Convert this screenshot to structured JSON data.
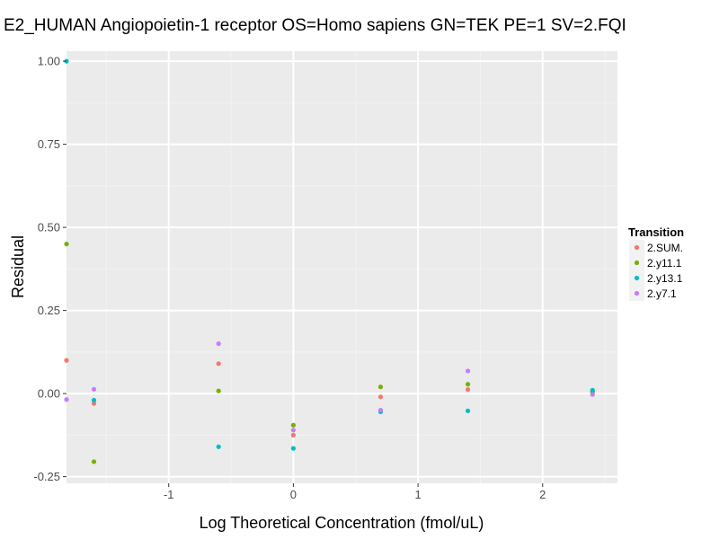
{
  "chart_data": {
    "type": "scatter",
    "title": "E2_HUMAN Angiopoietin-1 receptor OS=Homo sapiens GN=TEK PE=1 SV=2.FQI",
    "xlabel": "Log Theoretical Concentration (fmol/uL)",
    "ylabel": "Residual",
    "xlim": [
      -1.82,
      2.6
    ],
    "ylim": [
      -0.27,
      1.03
    ],
    "x_ticks": [
      -1,
      0,
      1,
      2
    ],
    "y_ticks": [
      -0.25,
      0,
      0.25,
      0.5,
      0.75,
      1.0
    ],
    "x_tick_labels": [
      "-1",
      "0",
      "1",
      "2"
    ],
    "y_tick_labels": [
      "-0.25",
      "0.00",
      "0.25",
      "0.50",
      "0.75",
      "1.00"
    ],
    "grid": true,
    "legend": {
      "title": "Transition",
      "position": "right"
    },
    "series": [
      {
        "name": "2.SUM.",
        "color": "#F8766D",
        "points": [
          [
            -1.82,
            0.1
          ],
          [
            -1.6,
            -0.03
          ],
          [
            -0.6,
            0.09
          ],
          [
            0,
            -0.125
          ],
          [
            0.7,
            -0.01
          ],
          [
            1.4,
            0.012
          ],
          [
            2.4,
            0.005
          ]
        ]
      },
      {
        "name": "2.y11.1",
        "color": "#7CAE00",
        "points": [
          [
            -1.82,
            0.45
          ],
          [
            -1.6,
            -0.205
          ],
          [
            -0.6,
            0.008
          ],
          [
            0,
            -0.095
          ],
          [
            0.7,
            0.02
          ],
          [
            1.4,
            0.028
          ],
          [
            2.4,
            0.005
          ]
        ]
      },
      {
        "name": "2.y13.1",
        "color": "#00BFC4",
        "points": [
          [
            -1.82,
            1.0
          ],
          [
            -1.6,
            -0.02
          ],
          [
            -0.6,
            -0.16
          ],
          [
            0,
            -0.165
          ],
          [
            0.7,
            -0.055
          ],
          [
            1.4,
            -0.052
          ],
          [
            2.4,
            0.01
          ]
        ]
      },
      {
        "name": "2.y7.1",
        "color": "#C77CFF",
        "points": [
          [
            -1.82,
            -0.018
          ],
          [
            -1.6,
            0.013
          ],
          [
            -0.6,
            0.15
          ],
          [
            0,
            -0.11
          ],
          [
            0.7,
            -0.05
          ],
          [
            1.4,
            0.068
          ],
          [
            2.4,
            -0.003
          ]
        ]
      }
    ]
  }
}
